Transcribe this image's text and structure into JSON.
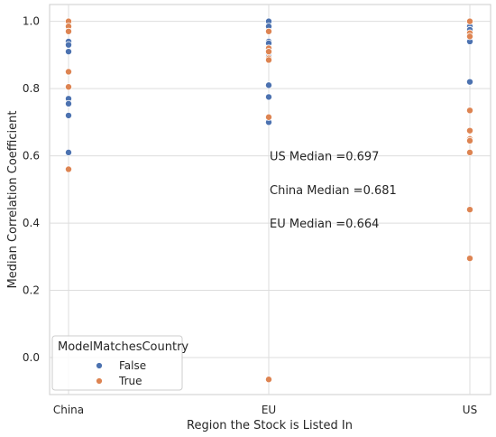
{
  "chart_data": {
    "type": "scatter",
    "xlabel": "Region the Stock is Listed In",
    "ylabel": "Median Correlation Coefficient",
    "categories": [
      "China",
      "EU",
      "US"
    ],
    "ylim": [
      -0.11,
      1.05
    ],
    "yticks": [
      "0.0",
      "0.2",
      "0.4",
      "0.6",
      "0.8",
      "1.0"
    ],
    "grid": true,
    "legend": {
      "title": "ModelMatchesCountry",
      "placement": "bottom-left",
      "entries": [
        {
          "label": "False",
          "color": "#4c72b0"
        },
        {
          "label": "True",
          "color": "#dd8452"
        }
      ]
    },
    "annotations": [
      {
        "text": "US Median =0.697",
        "x": "EU",
        "y": 0.6
      },
      {
        "text": "China Median =0.681",
        "x": "EU",
        "y": 0.5
      },
      {
        "text": "EU Median =0.664",
        "x": "EU",
        "y": 0.4
      }
    ],
    "series": [
      {
        "name": "False",
        "color": "#4c72b0",
        "points": [
          {
            "x": "China",
            "y": 0.94
          },
          {
            "x": "China",
            "y": 0.93
          },
          {
            "x": "China",
            "y": 0.91
          },
          {
            "x": "China",
            "y": 0.77
          },
          {
            "x": "China",
            "y": 0.755
          },
          {
            "x": "China",
            "y": 0.72
          },
          {
            "x": "China",
            "y": 0.61
          },
          {
            "x": "EU",
            "y": 1.0
          },
          {
            "x": "EU",
            "y": 0.985
          },
          {
            "x": "EU",
            "y": 0.94
          },
          {
            "x": "EU",
            "y": 0.935
          },
          {
            "x": "EU",
            "y": 0.905
          },
          {
            "x": "EU",
            "y": 0.895
          },
          {
            "x": "EU",
            "y": 0.81
          },
          {
            "x": "EU",
            "y": 0.775
          },
          {
            "x": "EU",
            "y": 0.7
          },
          {
            "x": "US",
            "y": 0.985
          },
          {
            "x": "US",
            "y": 0.975
          },
          {
            "x": "US",
            "y": 0.94
          },
          {
            "x": "US",
            "y": 0.82
          }
        ]
      },
      {
        "name": "True",
        "color": "#dd8452",
        "points": [
          {
            "x": "China",
            "y": 1.0
          },
          {
            "x": "China",
            "y": 0.985
          },
          {
            "x": "China",
            "y": 0.97
          },
          {
            "x": "China",
            "y": 0.85
          },
          {
            "x": "China",
            "y": 0.805
          },
          {
            "x": "China",
            "y": 0.56
          },
          {
            "x": "EU",
            "y": 0.97
          },
          {
            "x": "EU",
            "y": 0.92
          },
          {
            "x": "EU",
            "y": 0.91
          },
          {
            "x": "EU",
            "y": 0.89
          },
          {
            "x": "EU",
            "y": 0.885
          },
          {
            "x": "EU",
            "y": 0.715
          },
          {
            "x": "EU",
            "y": -0.065
          },
          {
            "x": "US",
            "y": 1.0
          },
          {
            "x": "US",
            "y": 0.965
          },
          {
            "x": "US",
            "y": 0.955
          },
          {
            "x": "US",
            "y": 0.735
          },
          {
            "x": "US",
            "y": 0.675
          },
          {
            "x": "US",
            "y": 0.65
          },
          {
            "x": "US",
            "y": 0.645
          },
          {
            "x": "US",
            "y": 0.61
          },
          {
            "x": "US",
            "y": 0.44
          },
          {
            "x": "US",
            "y": 0.295
          }
        ]
      }
    ]
  }
}
